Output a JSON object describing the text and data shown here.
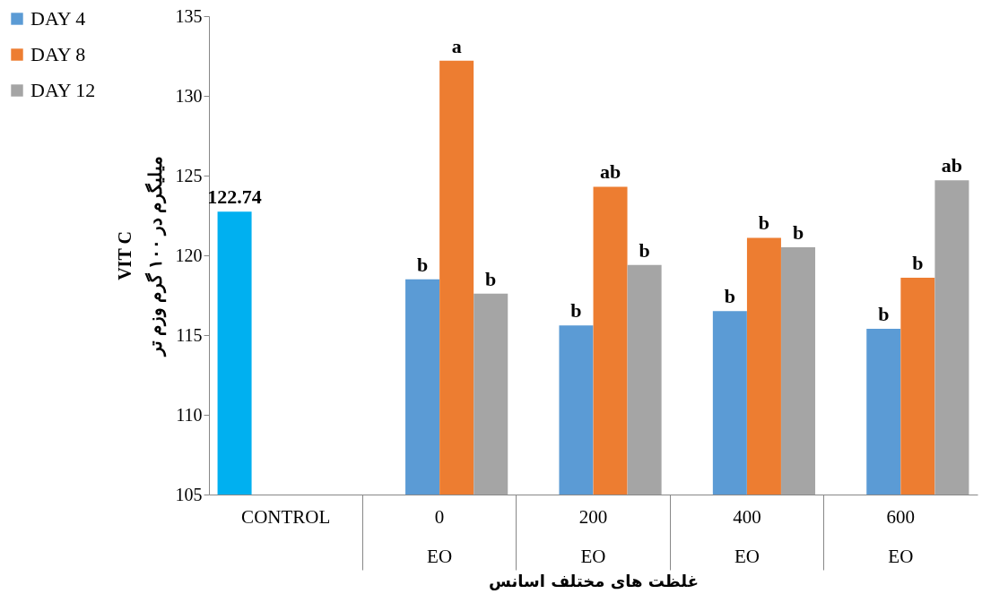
{
  "chart_data": {
    "type": "bar",
    "xlabel": "غلظت های مختلف اسانس",
    "ylabel": "VIT C\nمیلیگرم در ۱۰۰ گرم وزم تر",
    "categories": [
      "CONTROL",
      "0\nEO",
      "200\nEO",
      "400\nEO",
      "600\nEO"
    ],
    "series": [
      {
        "color": "#00b0f0",
        "values": [
          122.74,
          null,
          null,
          null,
          null
        ],
        "value_labels": [
          "122.74",
          null,
          null,
          null,
          null
        ]
      },
      {
        "name": "DAY 4",
        "color": "#5b9bd5",
        "values": [
          null,
          118.5,
          115.6,
          116.5,
          115.4
        ],
        "value_labels": [
          null,
          "b",
          "b",
          "b",
          "b"
        ]
      },
      {
        "name": "DAY 8",
        "color": "#ed7d31",
        "values": [
          null,
          132.2,
          124.3,
          121.1,
          118.6
        ],
        "value_labels": [
          null,
          "a",
          "ab",
          "b",
          "b"
        ]
      },
      {
        "name": "DAY 12",
        "color": "#a5a5a5",
        "values": [
          null,
          117.6,
          119.4,
          120.5,
          124.7
        ],
        "value_labels": [
          null,
          "b",
          "b",
          "b",
          "ab"
        ]
      }
    ],
    "ylim": [
      105,
      135
    ],
    "yticks": [
      105,
      110,
      115,
      120,
      125,
      130,
      135
    ],
    "legend": "top left"
  }
}
